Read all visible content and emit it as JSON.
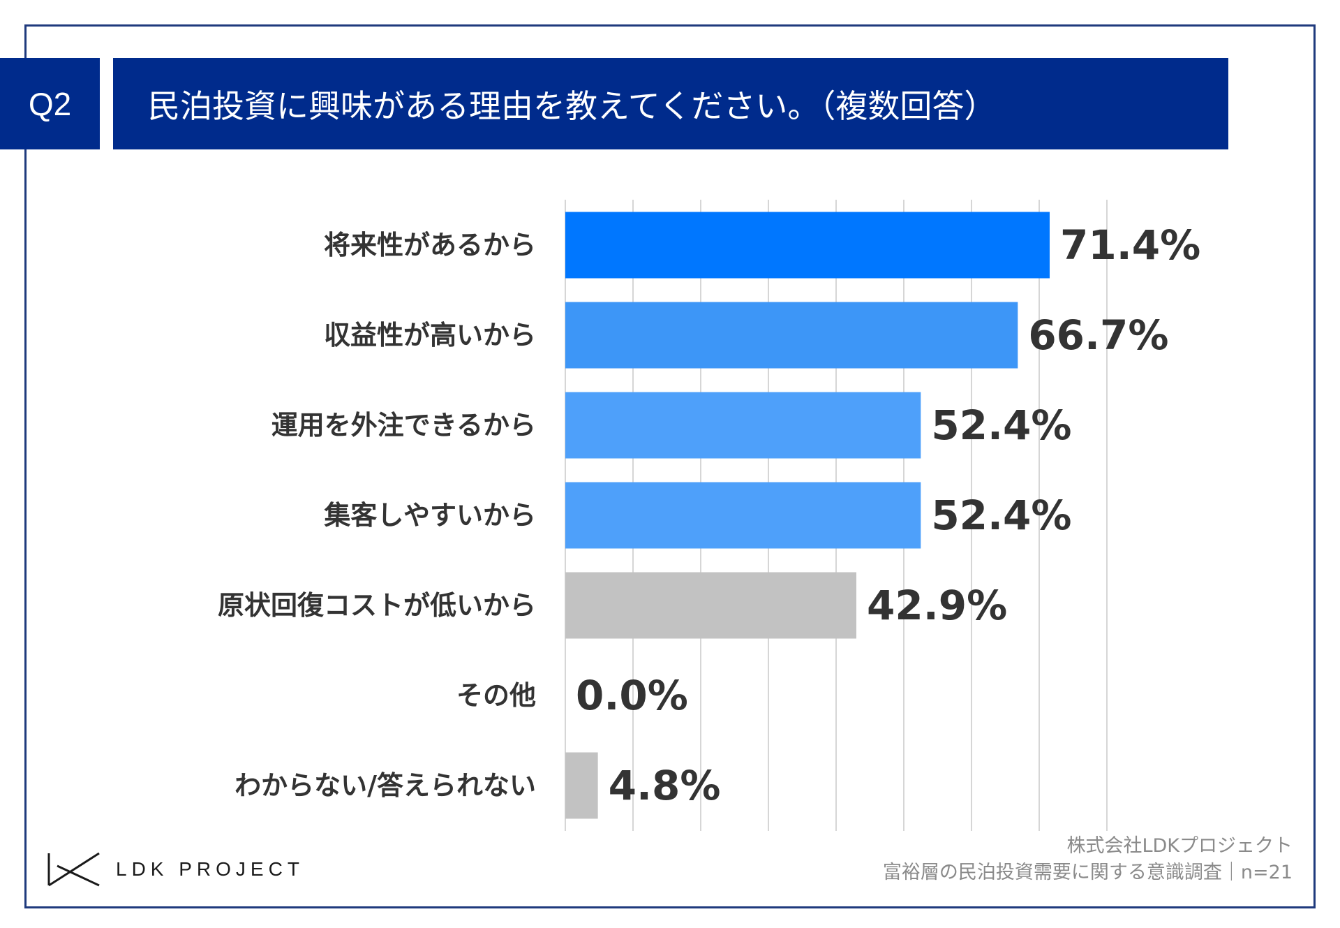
{
  "header": {
    "question_no": "Q2",
    "title": "民泊投資に興味がある理由を教えてください。（複数回答）"
  },
  "chart_data": {
    "type": "bar",
    "orientation": "horizontal",
    "title": "民泊投資に興味がある理由を教えてください。（複数回答）",
    "categories": [
      "将来性があるから",
      "収益性が高いから",
      "運用を外注できるから",
      "集客しやすいから",
      "原状回復コストが低いから",
      "その他",
      "わからない/答えられない"
    ],
    "values": [
      71.4,
      66.7,
      52.4,
      52.4,
      42.9,
      0.0,
      4.8
    ],
    "value_labels": [
      "71.4%",
      "66.7%",
      "52.4%",
      "52.4%",
      "42.9%",
      "0.0%",
      "4.8%"
    ],
    "bar_colors": [
      "#0077ff",
      "#3d96f7",
      "#4ea0fa",
      "#4ea0fa",
      "#c2c2c2",
      "#c2c2c2",
      "#c2c2c2"
    ],
    "xlim": [
      0,
      80
    ],
    "grid": true,
    "unit": "%"
  },
  "source": {
    "line1": "株式会社LDKプロジェクト",
    "line2": "富裕層の民泊投資需要に関する意識調査｜n=21"
  },
  "logo": {
    "text": "LDK PROJECT"
  }
}
